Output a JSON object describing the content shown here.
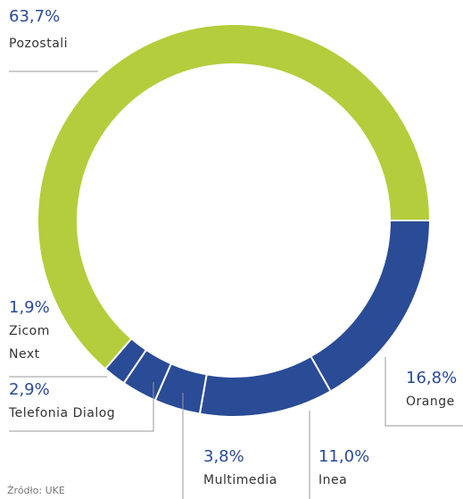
{
  "chart_data": {
    "type": "donut",
    "categories": [
      "Orange",
      "Inea",
      "Multimedia",
      "Telefonia Dialog",
      "Zicom Next",
      "Pozostali"
    ],
    "values": [
      16.8,
      11.0,
      3.8,
      2.9,
      1.9,
      63.7
    ],
    "value_labels": [
      "16,8%",
      "11,0%",
      "3,8%",
      "2,9%",
      "1,9%",
      "63,7%"
    ],
    "colors": [
      "#2a4b96",
      "#2a4b96",
      "#2a4b96",
      "#2a4b96",
      "#2a4b96",
      "#b4cd3c"
    ],
    "source": "Źródło: UKE"
  }
}
